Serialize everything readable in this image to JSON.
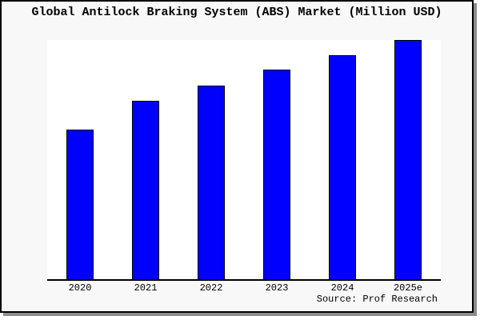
{
  "colors": {
    "bar_fill": "#0000ff",
    "bar_border": "#000000",
    "figure_background": "#f8f8f8",
    "plot_background": "#ffffff",
    "frame_border": "#000000",
    "frame_shadow": "#8c8c8c",
    "text": "#000000"
  },
  "source_label": "Source: Prof Research",
  "chart_data": {
    "type": "bar",
    "title": "Global Antilock Braking System (ABS) Market (Million USD)",
    "categories": [
      "2020",
      "2021",
      "2022",
      "2023",
      "2024",
      "2025e"
    ],
    "values": [
      62.8,
      74.7,
      81.1,
      87.7,
      93.8,
      100
    ],
    "values_note": "No y-axis ticks or labels are rendered; values estimated from bar pixel heights, normalized so 2025e = 100",
    "xlabel": "",
    "ylabel": "",
    "ylim": [
      0,
      100
    ],
    "grid": false,
    "y_axis_visible": false,
    "legend": null,
    "annotation": "Source: Prof Research"
  }
}
